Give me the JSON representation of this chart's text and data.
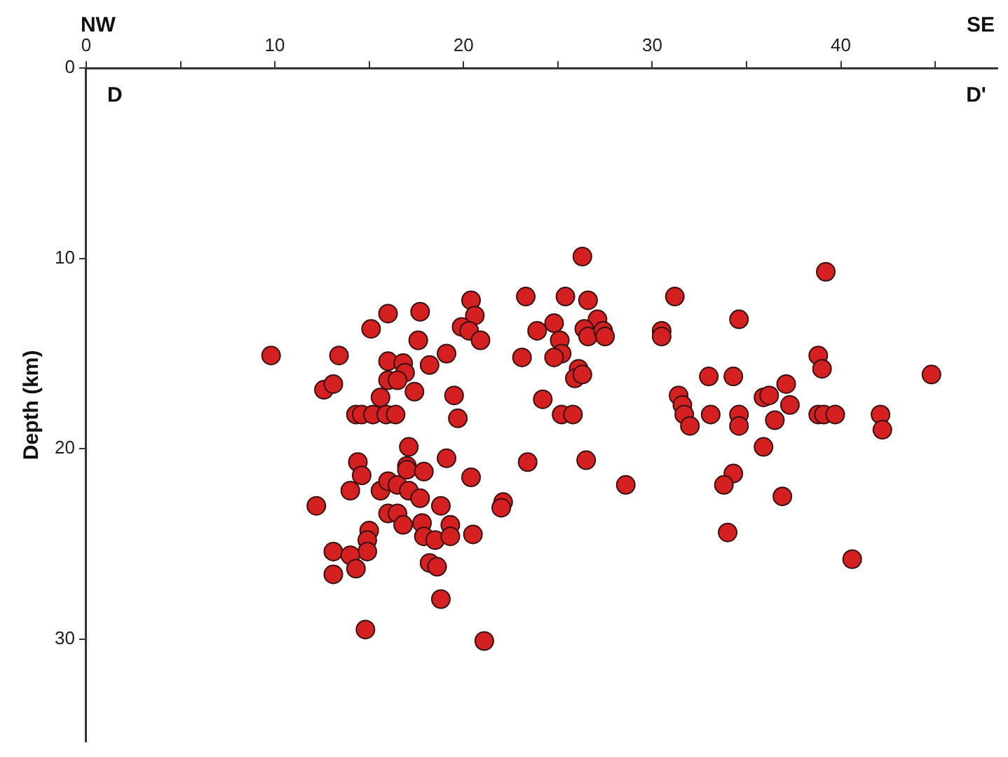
{
  "chart_data": {
    "type": "scatter",
    "ylabel": "Depth (km)",
    "annotations": [
      "NW",
      "SE",
      "D",
      "D'"
    ],
    "marker": "circle",
    "grid": false,
    "legend": false,
    "xlim": [
      0,
      48.3
    ],
    "ylim": [
      35.4,
      0
    ],
    "xticks": [
      0,
      {
        "value": 5,
        "label": null
      },
      10,
      {
        "value": 15,
        "label": null
      },
      20,
      {
        "value": 25,
        "label": null
      },
      30,
      {
        "value": 35,
        "label": null
      },
      40,
      {
        "value": 45,
        "label": null
      }
    ],
    "yticks": [
      0,
      10,
      20,
      30
    ],
    "series": [
      {
        "color": "#d42020",
        "x": [
          9.8,
          13.4,
          12.6,
          13.1,
          15.1,
          16.0,
          17.7,
          17.6,
          16.0,
          16.8,
          16.9,
          16.0,
          16.5,
          18.2,
          19.1,
          15.6,
          17.4,
          14.3,
          14.6,
          15.2,
          15.9,
          16.4,
          19.5,
          19.7,
          20.4,
          20.6,
          19.9,
          20.3,
          20.9,
          23.3,
          25.4,
          26.6,
          26.3,
          27.1,
          26.4,
          26.6,
          27.4,
          27.5,
          24.8,
          23.9,
          25.1,
          25.2,
          24.8,
          23.1,
          26.1,
          25.9,
          26.3,
          24.2,
          25.2,
          25.8,
          23.4,
          26.5,
          17.1,
          19.1,
          14.4,
          14.6,
          14.0,
          12.2,
          15.6,
          16.0,
          16.5,
          17.0,
          17.0,
          17.1,
          17.9,
          17.7,
          20.4,
          16.0,
          16.5,
          16.8,
          17.8,
          18.8,
          19.3,
          17.9,
          18.5,
          19.3,
          20.5,
          15.0,
          14.9,
          14.9,
          13.1,
          14.0,
          13.1,
          14.3,
          18.2,
          18.6,
          18.8,
          14.8,
          21.1,
          22.1,
          22.0,
          28.6,
          31.2,
          34.6,
          30.5,
          30.5,
          39.2,
          38.8,
          39.0,
          44.8,
          33.0,
          34.3,
          31.4,
          31.6,
          31.7,
          32.0,
          33.1,
          34.6,
          34.6,
          35.9,
          36.2,
          36.5,
          37.1,
          37.3,
          35.9,
          38.8,
          39.1,
          39.7,
          42.1,
          42.2,
          34.3,
          33.8,
          36.9,
          34.0,
          40.6
        ],
        "values": [
          15.1,
          15.1,
          16.9,
          16.6,
          13.7,
          12.9,
          12.8,
          14.3,
          15.4,
          15.5,
          16.0,
          16.4,
          16.4,
          15.6,
          15.0,
          17.3,
          17.0,
          18.2,
          18.2,
          18.2,
          18.2,
          18.2,
          17.2,
          18.4,
          12.2,
          13.0,
          13.6,
          13.8,
          14.3,
          12.0,
          12.0,
          12.2,
          9.9,
          13.2,
          13.7,
          14.1,
          13.8,
          14.1,
          13.4,
          13.8,
          14.3,
          15.0,
          15.2,
          15.2,
          15.8,
          16.3,
          16.1,
          17.4,
          18.2,
          18.2,
          20.7,
          20.6,
          19.9,
          20.5,
          20.7,
          21.4,
          22.2,
          23.0,
          22.2,
          21.7,
          21.9,
          20.9,
          21.1,
          22.2,
          21.2,
          22.6,
          21.5,
          23.4,
          23.4,
          24.0,
          23.9,
          23.0,
          24.0,
          24.6,
          24.8,
          24.6,
          24.5,
          24.3,
          24.8,
          25.4,
          25.4,
          25.6,
          26.6,
          26.3,
          26.0,
          26.2,
          27.9,
          29.5,
          30.1,
          22.8,
          23.1,
          21.9,
          12.0,
          13.2,
          13.8,
          14.1,
          10.7,
          15.1,
          15.8,
          16.1,
          16.2,
          16.2,
          17.2,
          17.7,
          18.2,
          18.8,
          18.2,
          18.2,
          18.8,
          17.3,
          17.2,
          18.5,
          16.6,
          17.7,
          19.9,
          18.2,
          18.2,
          18.2,
          18.2,
          19.0,
          21.3,
          21.9,
          22.5,
          24.4,
          25.8
        ]
      }
    ]
  }
}
